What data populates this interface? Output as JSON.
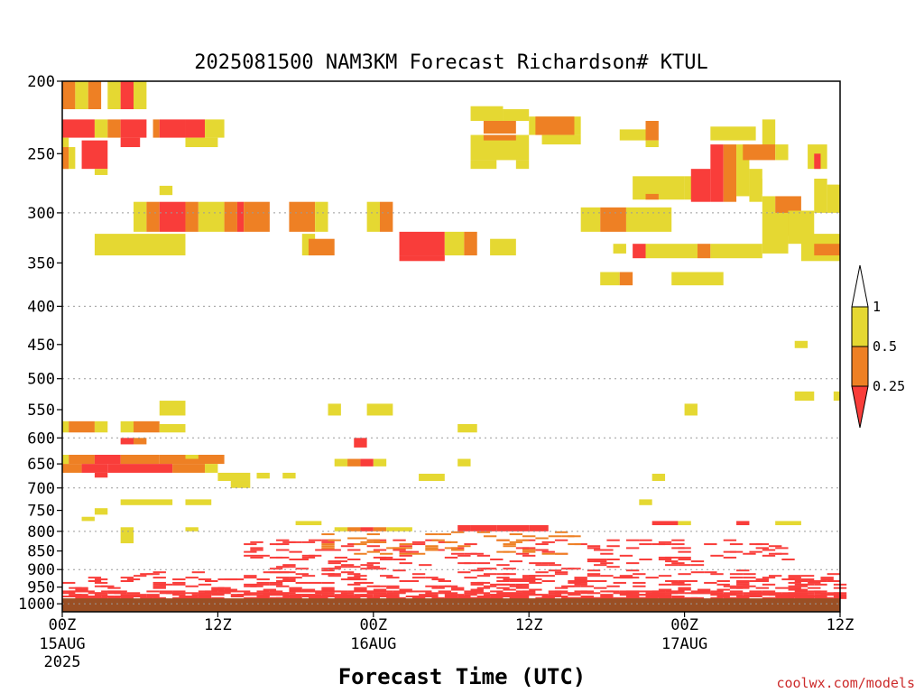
{
  "chart_data": {
    "type": "heatmap",
    "title": "2025081500 NAM3KM Forecast Richardson# KTUL",
    "xlabel": "Forecast Time (UTC)",
    "ylabel": "",
    "credit": "coolwx.com/models",
    "y_scale": "log-pressure",
    "ylim": [
      1025,
      200
    ],
    "xlim": [
      0,
      60
    ],
    "y_ticks": [
      200,
      250,
      300,
      350,
      400,
      450,
      500,
      550,
      600,
      650,
      700,
      750,
      800,
      850,
      900,
      950,
      1000
    ],
    "y_grid": [
      300,
      400,
      500,
      600,
      700,
      800,
      900,
      1000
    ],
    "x_ticks": [
      {
        "hour": 0,
        "label": "00Z",
        "date": "15AUG",
        "year": "2025"
      },
      {
        "hour": 12,
        "label": "12Z",
        "date": "",
        "year": ""
      },
      {
        "hour": 24,
        "label": "00Z",
        "date": "16AUG",
        "year": ""
      },
      {
        "hour": 36,
        "label": "12Z",
        "date": "",
        "year": ""
      },
      {
        "hour": 48,
        "label": "00Z",
        "date": "17AUG",
        "year": ""
      },
      {
        "hour": 60,
        "label": "12Z",
        "date": "",
        "year": ""
      }
    ],
    "legend": {
      "placement": "right",
      "levels": [
        "1",
        "0.5",
        "0.25"
      ],
      "colors": [
        "#ffffff",
        "#e5d832",
        "#ee8024",
        "#f93d3a"
      ]
    },
    "colors": {
      "high": "#e5d832",
      "mid": "#ee8024",
      "low": "#f93d3a",
      "ground": "#9a4f24"
    },
    "ground_pressure": 1000,
    "cells": [
      [
        0,
        1,
        200,
        218,
        "mid"
      ],
      [
        1,
        2,
        200,
        218,
        "high"
      ],
      [
        2,
        3,
        200,
        218,
        "mid"
      ],
      [
        3.5,
        4.5,
        200,
        218,
        "high"
      ],
      [
        4.5,
        5.5,
        200,
        218,
        "low"
      ],
      [
        5.5,
        6.5,
        200,
        218,
        "high"
      ],
      [
        0,
        2.5,
        225,
        238,
        "low"
      ],
      [
        2.5,
        3.5,
        225,
        238,
        "high"
      ],
      [
        3.5,
        4.5,
        225,
        238,
        "mid"
      ],
      [
        4.5,
        6.5,
        225,
        238,
        "low"
      ],
      [
        7,
        7.5,
        225,
        238,
        "mid"
      ],
      [
        7.5,
        9.5,
        225,
        238,
        "low"
      ],
      [
        9.5,
        11,
        225,
        238,
        "low"
      ],
      [
        11,
        12.5,
        225,
        238,
        "high"
      ],
      [
        0,
        0.5,
        238,
        262,
        "high"
      ],
      [
        1.5,
        3.5,
        240,
        262,
        "low"
      ],
      [
        2.5,
        3.5,
        262,
        267,
        "high"
      ],
      [
        4.5,
        6,
        238,
        245,
        "low"
      ],
      [
        9.5,
        12,
        238,
        245,
        "high"
      ],
      [
        0,
        0.5,
        245,
        262,
        "mid"
      ],
      [
        0.5,
        1,
        245,
        262,
        "high"
      ],
      [
        7.5,
        8.5,
        276,
        284,
        "high"
      ],
      [
        5.5,
        6.5,
        290,
        318,
        "high"
      ],
      [
        6.5,
        7.5,
        290,
        318,
        "mid"
      ],
      [
        7.5,
        9.5,
        290,
        318,
        "low"
      ],
      [
        9.5,
        10.5,
        290,
        318,
        "mid"
      ],
      [
        10.5,
        12.5,
        290,
        318,
        "high"
      ],
      [
        12.5,
        13.5,
        290,
        318,
        "mid"
      ],
      [
        13.5,
        14,
        290,
        318,
        "low"
      ],
      [
        14,
        16,
        290,
        318,
        "mid"
      ],
      [
        17.5,
        19.5,
        290,
        318,
        "mid"
      ],
      [
        19.5,
        20.5,
        290,
        318,
        "high"
      ],
      [
        23.5,
        24.5,
        290,
        318,
        "high"
      ],
      [
        24.5,
        25.5,
        290,
        318,
        "mid"
      ],
      [
        2.5,
        9.5,
        320,
        342,
        "high"
      ],
      [
        18.5,
        19.5,
        320,
        342,
        "high"
      ],
      [
        26,
        29.5,
        318,
        342,
        "low"
      ],
      [
        29.5,
        31,
        318,
        342,
        "high"
      ],
      [
        31,
        32,
        318,
        342,
        "mid"
      ],
      [
        19,
        21,
        325,
        342,
        "mid"
      ],
      [
        26,
        29.5,
        342,
        348,
        "low"
      ],
      [
        33,
        35,
        325,
        342,
        "high"
      ],
      [
        31.5,
        34,
        216,
        226,
        "high"
      ],
      [
        34,
        36,
        218,
        226,
        "high"
      ],
      [
        32.5,
        35,
        226,
        235,
        "mid"
      ],
      [
        36,
        40,
        223,
        236,
        "high"
      ],
      [
        36.5,
        39.5,
        223,
        236,
        "mid"
      ],
      [
        31.5,
        36,
        236,
        255,
        "high"
      ],
      [
        37,
        40,
        236,
        243,
        "high"
      ],
      [
        32.5,
        35,
        236,
        240,
        "mid"
      ],
      [
        31.5,
        33.5,
        255,
        262,
        "high"
      ],
      [
        35,
        36,
        255,
        262,
        "high"
      ],
      [
        43,
        45,
        232,
        240,
        "high"
      ],
      [
        45,
        46,
        226,
        240,
        "mid"
      ],
      [
        45,
        46,
        240,
        245,
        "high"
      ],
      [
        50,
        53.5,
        230,
        240,
        "high"
      ],
      [
        54,
        55,
        225,
        245,
        "high"
      ],
      [
        44,
        48,
        268,
        288,
        "high"
      ],
      [
        45,
        46,
        283,
        288,
        "mid"
      ],
      [
        48,
        49,
        268,
        288,
        "high"
      ],
      [
        48.5,
        50,
        262,
        290,
        "low"
      ],
      [
        50,
        51,
        243,
        290,
        "low"
      ],
      [
        51,
        52,
        243,
        290,
        "mid"
      ],
      [
        52,
        53,
        243,
        285,
        "high"
      ],
      [
        53,
        54,
        262,
        283,
        "high"
      ],
      [
        52.5,
        55,
        243,
        255,
        "mid"
      ],
      [
        55,
        56,
        243,
        255,
        "high"
      ],
      [
        53,
        54,
        270,
        290,
        "high"
      ],
      [
        54,
        55,
        285,
        300,
        "high"
      ],
      [
        55,
        57,
        285,
        322,
        "mid"
      ],
      [
        56,
        58,
        298,
        330,
        "high"
      ],
      [
        58,
        59,
        270,
        300,
        "high"
      ],
      [
        59,
        60,
        275,
        300,
        "high"
      ],
      [
        57.5,
        59,
        243,
        262,
        "high"
      ],
      [
        58,
        58.5,
        250,
        262,
        "low"
      ],
      [
        54,
        56,
        300,
        340,
        "high"
      ],
      [
        57,
        60,
        320,
        348,
        "high"
      ],
      [
        58,
        60,
        330,
        342,
        "mid"
      ],
      [
        40,
        41.5,
        295,
        318,
        "high"
      ],
      [
        41.5,
        43.5,
        295,
        318,
        "mid"
      ],
      [
        43.5,
        47,
        295,
        318,
        "high"
      ],
      [
        42.5,
        43.5,
        330,
        340,
        "high"
      ],
      [
        44,
        45,
        330,
        345,
        "low"
      ],
      [
        45,
        49,
        330,
        345,
        "high"
      ],
      [
        49,
        50,
        330,
        345,
        "mid"
      ],
      [
        50,
        54,
        330,
        345,
        "high"
      ],
      [
        41.5,
        43,
        360,
        375,
        "high"
      ],
      [
        43,
        44,
        360,
        375,
        "mid"
      ],
      [
        47,
        51,
        360,
        375,
        "high"
      ],
      [
        56.5,
        57.5,
        445,
        455,
        "high"
      ],
      [
        56.5,
        58,
        520,
        535,
        "high"
      ],
      [
        59.5,
        60,
        520,
        535,
        "high"
      ],
      [
        7.5,
        9.5,
        535,
        560,
        "high"
      ],
      [
        20.5,
        21.5,
        540,
        560,
        "high"
      ],
      [
        23.5,
        25.5,
        540,
        560,
        "high"
      ],
      [
        48,
        49,
        540,
        560,
        "high"
      ],
      [
        0,
        0.5,
        570,
        590,
        "high"
      ],
      [
        0.5,
        2.5,
        570,
        590,
        "mid"
      ],
      [
        2.5,
        3.5,
        570,
        590,
        "high"
      ],
      [
        4.5,
        5.5,
        570,
        590,
        "high"
      ],
      [
        5.5,
        7.5,
        570,
        590,
        "mid"
      ],
      [
        7.5,
        9.5,
        575,
        590,
        "high"
      ],
      [
        4.5,
        5.5,
        600,
        612,
        "low"
      ],
      [
        5.5,
        6.5,
        600,
        612,
        "mid"
      ],
      [
        22.5,
        23.5,
        600,
        618,
        "low"
      ],
      [
        30.5,
        32,
        575,
        590,
        "high"
      ],
      [
        0,
        0.5,
        632,
        650,
        "high"
      ],
      [
        0.5,
        2.5,
        632,
        650,
        "mid"
      ],
      [
        2.5,
        4.5,
        632,
        650,
        "low"
      ],
      [
        4.5,
        7.5,
        632,
        650,
        "mid"
      ],
      [
        7.5,
        12.5,
        632,
        650,
        "mid"
      ],
      [
        9.5,
        10.5,
        632,
        640,
        "high"
      ],
      [
        0,
        1.5,
        650,
        668,
        "mid"
      ],
      [
        1.5,
        3.5,
        650,
        668,
        "low"
      ],
      [
        3.5,
        8.5,
        650,
        668,
        "low"
      ],
      [
        8.5,
        11,
        650,
        668,
        "mid"
      ],
      [
        11,
        12,
        650,
        668,
        "high"
      ],
      [
        2.5,
        3.5,
        668,
        678,
        "low"
      ],
      [
        12,
        14.5,
        668,
        685,
        "high"
      ],
      [
        13,
        14.5,
        685,
        700,
        "high"
      ],
      [
        15,
        16,
        668,
        680,
        "high"
      ],
      [
        17,
        18,
        668,
        680,
        "high"
      ],
      [
        21,
        22,
        640,
        655,
        "high"
      ],
      [
        22,
        23,
        640,
        655,
        "mid"
      ],
      [
        23,
        24,
        640,
        655,
        "low"
      ],
      [
        24,
        25,
        640,
        655,
        "high"
      ],
      [
        27.5,
        29.5,
        670,
        685,
        "high"
      ],
      [
        30.5,
        31.5,
        640,
        655,
        "high"
      ],
      [
        45.5,
        46.5,
        670,
        685,
        "high"
      ],
      [
        4.5,
        8.5,
        725,
        738,
        "high"
      ],
      [
        9.5,
        11.5,
        725,
        738,
        "high"
      ],
      [
        2.5,
        3.5,
        745,
        760,
        "high"
      ],
      [
        1.5,
        2.5,
        765,
        775,
        "high"
      ],
      [
        44.5,
        45.5,
        725,
        738,
        "high"
      ],
      [
        18,
        20,
        775,
        785,
        "high"
      ],
      [
        45.5,
        47.5,
        775,
        785,
        "low"
      ],
      [
        47.5,
        48.5,
        775,
        785,
        "high"
      ],
      [
        52,
        53,
        775,
        785,
        "low"
      ],
      [
        55,
        57,
        775,
        785,
        "high"
      ],
      [
        4.5,
        5.5,
        790,
        830,
        "high"
      ],
      [
        9.5,
        10.5,
        790,
        800,
        "high"
      ],
      [
        21,
        22,
        790,
        800,
        "high"
      ],
      [
        22,
        23,
        790,
        800,
        "mid"
      ],
      [
        23,
        24,
        790,
        800,
        "low"
      ],
      [
        24,
        25,
        790,
        800,
        "mid"
      ],
      [
        25,
        27,
        790,
        800,
        "high"
      ],
      [
        30.5,
        31.5,
        785,
        800,
        "low"
      ],
      [
        31.5,
        33.5,
        785,
        800,
        "low"
      ],
      [
        33.5,
        36,
        785,
        800,
        "low"
      ],
      [
        36,
        37.5,
        785,
        800,
        "low"
      ]
    ],
    "strips": [
      [
        0,
        60,
        905,
        960,
        "low",
        0.18
      ],
      [
        0,
        60,
        960,
        985,
        "low",
        0.55
      ],
      [
        14,
        56,
        820,
        905,
        "low",
        0.12
      ],
      [
        20,
        40,
        800,
        860,
        "mid",
        0.12
      ]
    ]
  }
}
